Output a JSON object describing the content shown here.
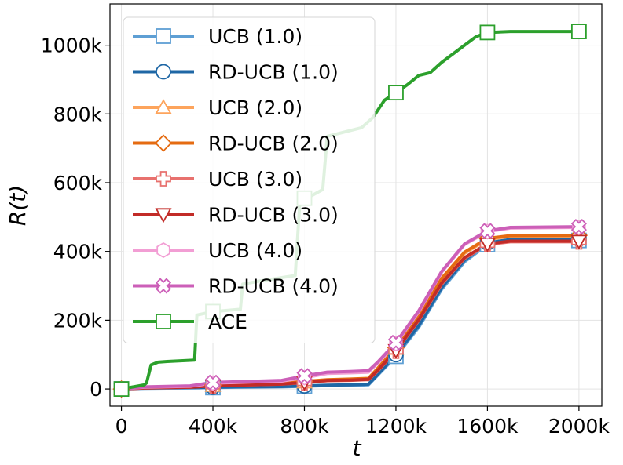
{
  "chart_data": {
    "type": "line",
    "title": "",
    "xlabel": "t",
    "ylabel": "R(t)",
    "xlim": [
      -50000,
      2100000
    ],
    "ylim": [
      -50000,
      1120000
    ],
    "xticks": [
      0,
      400000,
      800000,
      1200000,
      1600000,
      2000000
    ],
    "xtick_labels": [
      "0",
      "400k",
      "800k",
      "1200k",
      "1600k",
      "2000k"
    ],
    "yticks": [
      0,
      200000,
      400000,
      600000,
      800000,
      1000000
    ],
    "ytick_labels": [
      "0",
      "200k",
      "400k",
      "600k",
      "800k",
      "1000k"
    ],
    "grid": true,
    "legend_position": "upper-left",
    "series": [
      {
        "name": "UCB (1.0)",
        "color": "#5e9fd4",
        "marker": "square",
        "filled": false,
        "x": [
          0,
          100000,
          300000,
          400000,
          500000,
          700000,
          800000,
          900000,
          1000000,
          1080000,
          1120000,
          1200000,
          1300000,
          1400000,
          1500000,
          1600000,
          1700000,
          2000000
        ],
        "y": [
          0,
          2000,
          3000,
          4000,
          5000,
          6000,
          8000,
          10000,
          10000,
          12000,
          40000,
          95000,
          180000,
          290000,
          370000,
          420000,
          430000,
          432000
        ]
      },
      {
        "name": "RD-UCB (1.0)",
        "color": "#1f67a5",
        "marker": "circle",
        "filled": false,
        "x": [
          0,
          100000,
          300000,
          400000,
          500000,
          700000,
          800000,
          900000,
          1000000,
          1080000,
          1120000,
          1200000,
          1300000,
          1400000,
          1500000,
          1600000,
          1700000,
          2000000
        ],
        "y": [
          0,
          3000,
          4000,
          5000,
          6000,
          7000,
          9000,
          11000,
          12000,
          14000,
          42000,
          100000,
          185000,
          295000,
          375000,
          425000,
          435000,
          436000
        ]
      },
      {
        "name": "UCB (2.0)",
        "color": "#fda45c",
        "marker": "triangle-up",
        "filled": false,
        "x": [
          0,
          100000,
          300000,
          400000,
          500000,
          700000,
          800000,
          900000,
          1000000,
          1080000,
          1120000,
          1200000,
          1300000,
          1400000,
          1500000,
          1600000,
          1700000,
          2000000
        ],
        "y": [
          0,
          4000,
          6000,
          10000,
          12000,
          15000,
          20000,
          26000,
          28000,
          30000,
          58000,
          118000,
          210000,
          320000,
          395000,
          435000,
          444000,
          445000
        ]
      },
      {
        "name": "RD-UCB (2.0)",
        "color": "#e56b11",
        "marker": "diamond",
        "filled": false,
        "x": [
          0,
          100000,
          300000,
          400000,
          500000,
          700000,
          800000,
          900000,
          1000000,
          1080000,
          1120000,
          1200000,
          1300000,
          1400000,
          1500000,
          1600000,
          1700000,
          2000000
        ],
        "y": [
          0,
          4000,
          6000,
          11000,
          13000,
          16000,
          22000,
          27000,
          29000,
          31000,
          60000,
          120000,
          212000,
          322000,
          398000,
          438000,
          446000,
          447000
        ]
      },
      {
        "name": "UCB (3.0)",
        "color": "#e8716e",
        "marker": "plus",
        "filled": false,
        "x": [
          0,
          100000,
          300000,
          400000,
          500000,
          700000,
          800000,
          900000,
          1000000,
          1080000,
          1120000,
          1200000,
          1300000,
          1400000,
          1500000,
          1600000,
          1700000,
          2000000
        ],
        "y": [
          0,
          3000,
          5000,
          9000,
          11000,
          14000,
          18000,
          24000,
          25000,
          27000,
          52000,
          110000,
          200000,
          305000,
          380000,
          420000,
          428000,
          428000
        ]
      },
      {
        "name": "RD-UCB (3.0)",
        "color": "#c22b27",
        "marker": "triangle-down",
        "filled": false,
        "x": [
          0,
          100000,
          300000,
          400000,
          500000,
          700000,
          800000,
          900000,
          1000000,
          1080000,
          1120000,
          1200000,
          1300000,
          1400000,
          1500000,
          1600000,
          1700000,
          2000000
        ],
        "y": [
          0,
          3000,
          5000,
          9000,
          11000,
          14000,
          19000,
          25000,
          26000,
          28000,
          54000,
          112000,
          202000,
          308000,
          382000,
          422000,
          430000,
          430000
        ]
      },
      {
        "name": "UCB (4.0)",
        "color": "#f29ed4",
        "marker": "hexagon",
        "filled": false,
        "x": [
          0,
          100000,
          300000,
          400000,
          500000,
          700000,
          800000,
          900000,
          1000000,
          1080000,
          1120000,
          1200000,
          1300000,
          1400000,
          1500000,
          1600000,
          1700000,
          2000000
        ],
        "y": [
          0,
          5000,
          8000,
          17000,
          19000,
          23000,
          33000,
          45000,
          47000,
          49000,
          75000,
          132000,
          225000,
          340000,
          420000,
          458000,
          468000,
          470000
        ]
      },
      {
        "name": "RD-UCB (4.0)",
        "color": "#cc5fb8",
        "marker": "x-cross",
        "filled": false,
        "x": [
          0,
          100000,
          300000,
          400000,
          500000,
          700000,
          800000,
          900000,
          1000000,
          1080000,
          1120000,
          1200000,
          1300000,
          1400000,
          1500000,
          1600000,
          1700000,
          2000000
        ],
        "y": [
          0,
          6000,
          9000,
          19000,
          21000,
          25000,
          38000,
          49000,
          51000,
          53000,
          78000,
          135000,
          228000,
          342000,
          422000,
          460000,
          470000,
          472000
        ]
      },
      {
        "name": "ACE",
        "color": "#2ca02c",
        "marker": "square",
        "filled": false,
        "x": [
          0,
          100000,
          110000,
          130000,
          160000,
          200000,
          320000,
          330000,
          400000,
          520000,
          530000,
          640000,
          660000,
          760000,
          780000,
          800000,
          820000,
          880000,
          900000,
          960000,
          1050000,
          1100000,
          1150000,
          1200000,
          1250000,
          1300000,
          1350000,
          1400000,
          1450000,
          1500000,
          1550000,
          1600000,
          1700000,
          2000000
        ],
        "y": [
          0,
          12000,
          18000,
          70000,
          78000,
          80000,
          84000,
          215000,
          225000,
          232000,
          305000,
          318000,
          320000,
          330000,
          545000,
          555000,
          558000,
          580000,
          735000,
          745000,
          760000,
          790000,
          840000,
          862000,
          885000,
          912000,
          920000,
          950000,
          975000,
          1000000,
          1025000,
          1037000,
          1040000,
          1040000
        ]
      }
    ]
  }
}
